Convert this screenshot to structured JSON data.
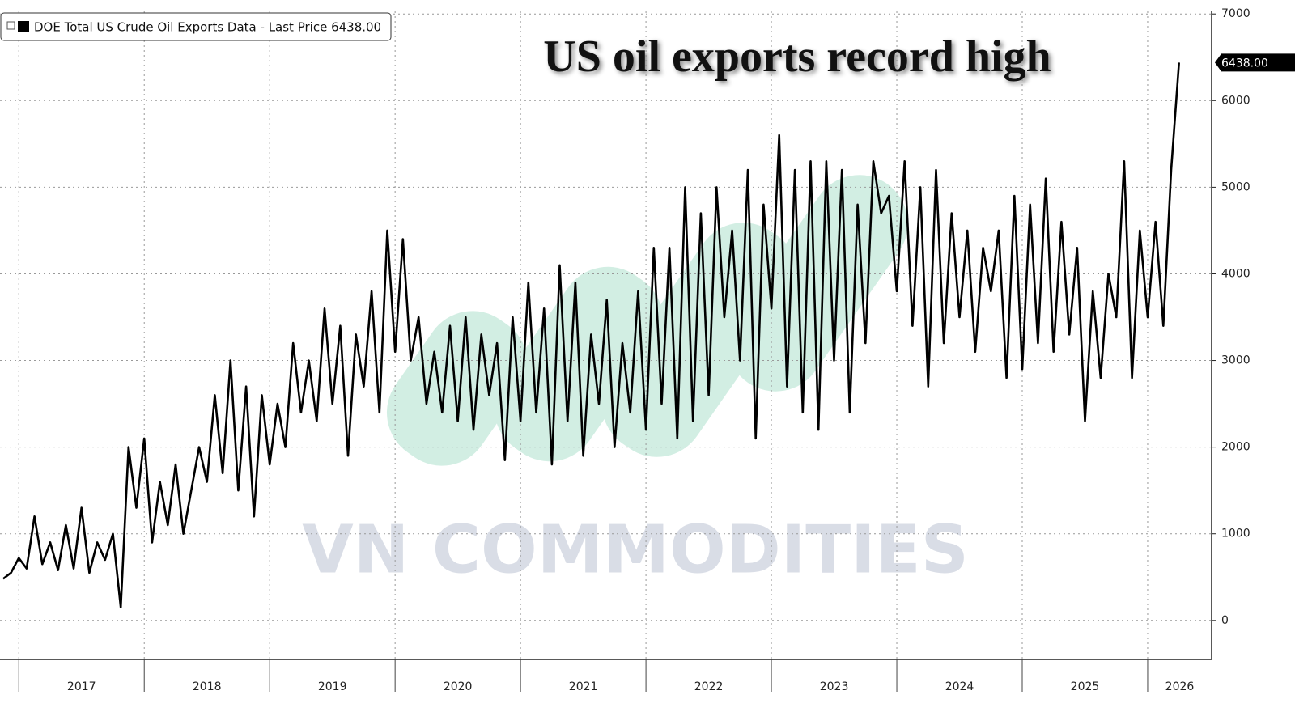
{
  "chart_data": {
    "type": "line",
    "title": "US oil exports record high",
    "watermark": "VN COMMODITIES",
    "last_price_label": "6438.00",
    "xlim": [
      2016.85,
      2026.51
    ],
    "xticks": [
      2017,
      2018,
      2019,
      2020,
      2021,
      2022,
      2023,
      2024,
      2025,
      2026
    ],
    "ylim": [
      -450,
      7030
    ],
    "yticks": [
      0,
      1000,
      2000,
      3000,
      4000,
      5000,
      6000,
      7000
    ],
    "grid": true,
    "x": [
      2016.875,
      2016.9375,
      2017,
      2017.0625,
      2017.125,
      2017.1875,
      2017.25,
      2017.3125,
      2017.375,
      2017.4375,
      2017.5,
      2017.5625,
      2017.625,
      2017.6875,
      2017.75,
      2017.8125,
      2017.875,
      2017.9375,
      2018,
      2018.0625,
      2018.125,
      2018.1875,
      2018.25,
      2018.3125,
      2018.375,
      2018.4375,
      2018.5,
      2018.5625,
      2018.625,
      2018.6875,
      2018.75,
      2018.8125,
      2018.875,
      2018.9375,
      2019,
      2019.0625,
      2019.125,
      2019.1875,
      2019.25,
      2019.3125,
      2019.375,
      2019.4375,
      2019.5,
      2019.5625,
      2019.625,
      2019.6875,
      2019.75,
      2019.8125,
      2019.875,
      2019.9375,
      2020,
      2020.0625,
      2020.125,
      2020.1875,
      2020.25,
      2020.3125,
      2020.375,
      2020.4375,
      2020.5,
      2020.5625,
      2020.625,
      2020.6875,
      2020.75,
      2020.8125,
      2020.875,
      2020.9375,
      2021,
      2021.0625,
      2021.125,
      2021.1875,
      2021.25,
      2021.3125,
      2021.375,
      2021.4375,
      2021.5,
      2021.5625,
      2021.625,
      2021.6875,
      2021.75,
      2021.8125,
      2021.875,
      2021.9375,
      2022,
      2022.0625,
      2022.125,
      2022.1875,
      2022.25,
      2022.3125,
      2022.375,
      2022.4375,
      2022.5,
      2022.5625,
      2022.625,
      2022.6875,
      2022.75,
      2022.8125,
      2022.875,
      2022.9375,
      2023,
      2023.0625,
      2023.125,
      2023.1875,
      2023.25,
      2023.3125,
      2023.375,
      2023.4375,
      2023.5,
      2023.5625,
      2023.625,
      2023.6875,
      2023.75,
      2023.8125,
      2023.875,
      2023.9375,
      2024,
      2024.0625,
      2024.125,
      2024.1875,
      2024.25,
      2024.3125,
      2024.375,
      2024.4375,
      2024.5,
      2024.5625,
      2024.625,
      2024.6875,
      2024.75,
      2024.8125,
      2024.875,
      2024.9375,
      2025,
      2025.0625,
      2025.125,
      2025.1875,
      2025.25,
      2025.3125,
      2025.375,
      2025.4375,
      2025.5,
      2025.5625,
      2025.625,
      2025.6875,
      2025.75,
      2025.8125,
      2025.875,
      2025.9375,
      2026,
      2026.0625,
      2026.125,
      2026.1875,
      2026.25
    ],
    "series": [
      {
        "name": "DOE Total US Crude Oil Exports Data - Last Price 6438.00",
        "color": "#000000",
        "values": [
          480,
          550,
          720,
          600,
          1200,
          650,
          900,
          580,
          1100,
          600,
          1300,
          550,
          900,
          700,
          1000,
          150,
          2000,
          1300,
          2100,
          900,
          1600,
          1100,
          1800,
          1000,
          1500,
          2000,
          1600,
          2600,
          1700,
          3000,
          1500,
          2700,
          1200,
          2600,
          1800,
          2500,
          2000,
          3200,
          2400,
          3000,
          2300,
          3600,
          2500,
          3400,
          1900,
          3300,
          2700,
          3800,
          2400,
          4500,
          3100,
          4400,
          3000,
          3500,
          2500,
          3100,
          2400,
          3400,
          2300,
          3500,
          2200,
          3300,
          2600,
          3200,
          1850,
          3500,
          2300,
          3900,
          2400,
          3600,
          1800,
          4100,
          2300,
          3900,
          1900,
          3300,
          2500,
          3700,
          2000,
          3200,
          2400,
          3800,
          2200,
          4300,
          2500,
          4300,
          2100,
          5000,
          2300,
          4700,
          2600,
          5000,
          3500,
          4500,
          3000,
          5200,
          2100,
          4800,
          3600,
          5600,
          2700,
          5200,
          2400,
          5300,
          2200,
          5300,
          3000,
          5200,
          2400,
          4800,
          3200,
          5300,
          4700,
          4900,
          3800,
          5300,
          3400,
          5000,
          2700,
          5200,
          3200,
          4700,
          3500,
          4500,
          3100,
          4300,
          3800,
          4500,
          2800,
          4900,
          2900,
          4800,
          3200,
          5100,
          3100,
          4600,
          3300,
          4300,
          2300,
          3800,
          2800,
          4000,
          3500,
          5300,
          2800,
          4500,
          3500,
          4600,
          3400,
          5200,
          6438
        ]
      }
    ]
  }
}
